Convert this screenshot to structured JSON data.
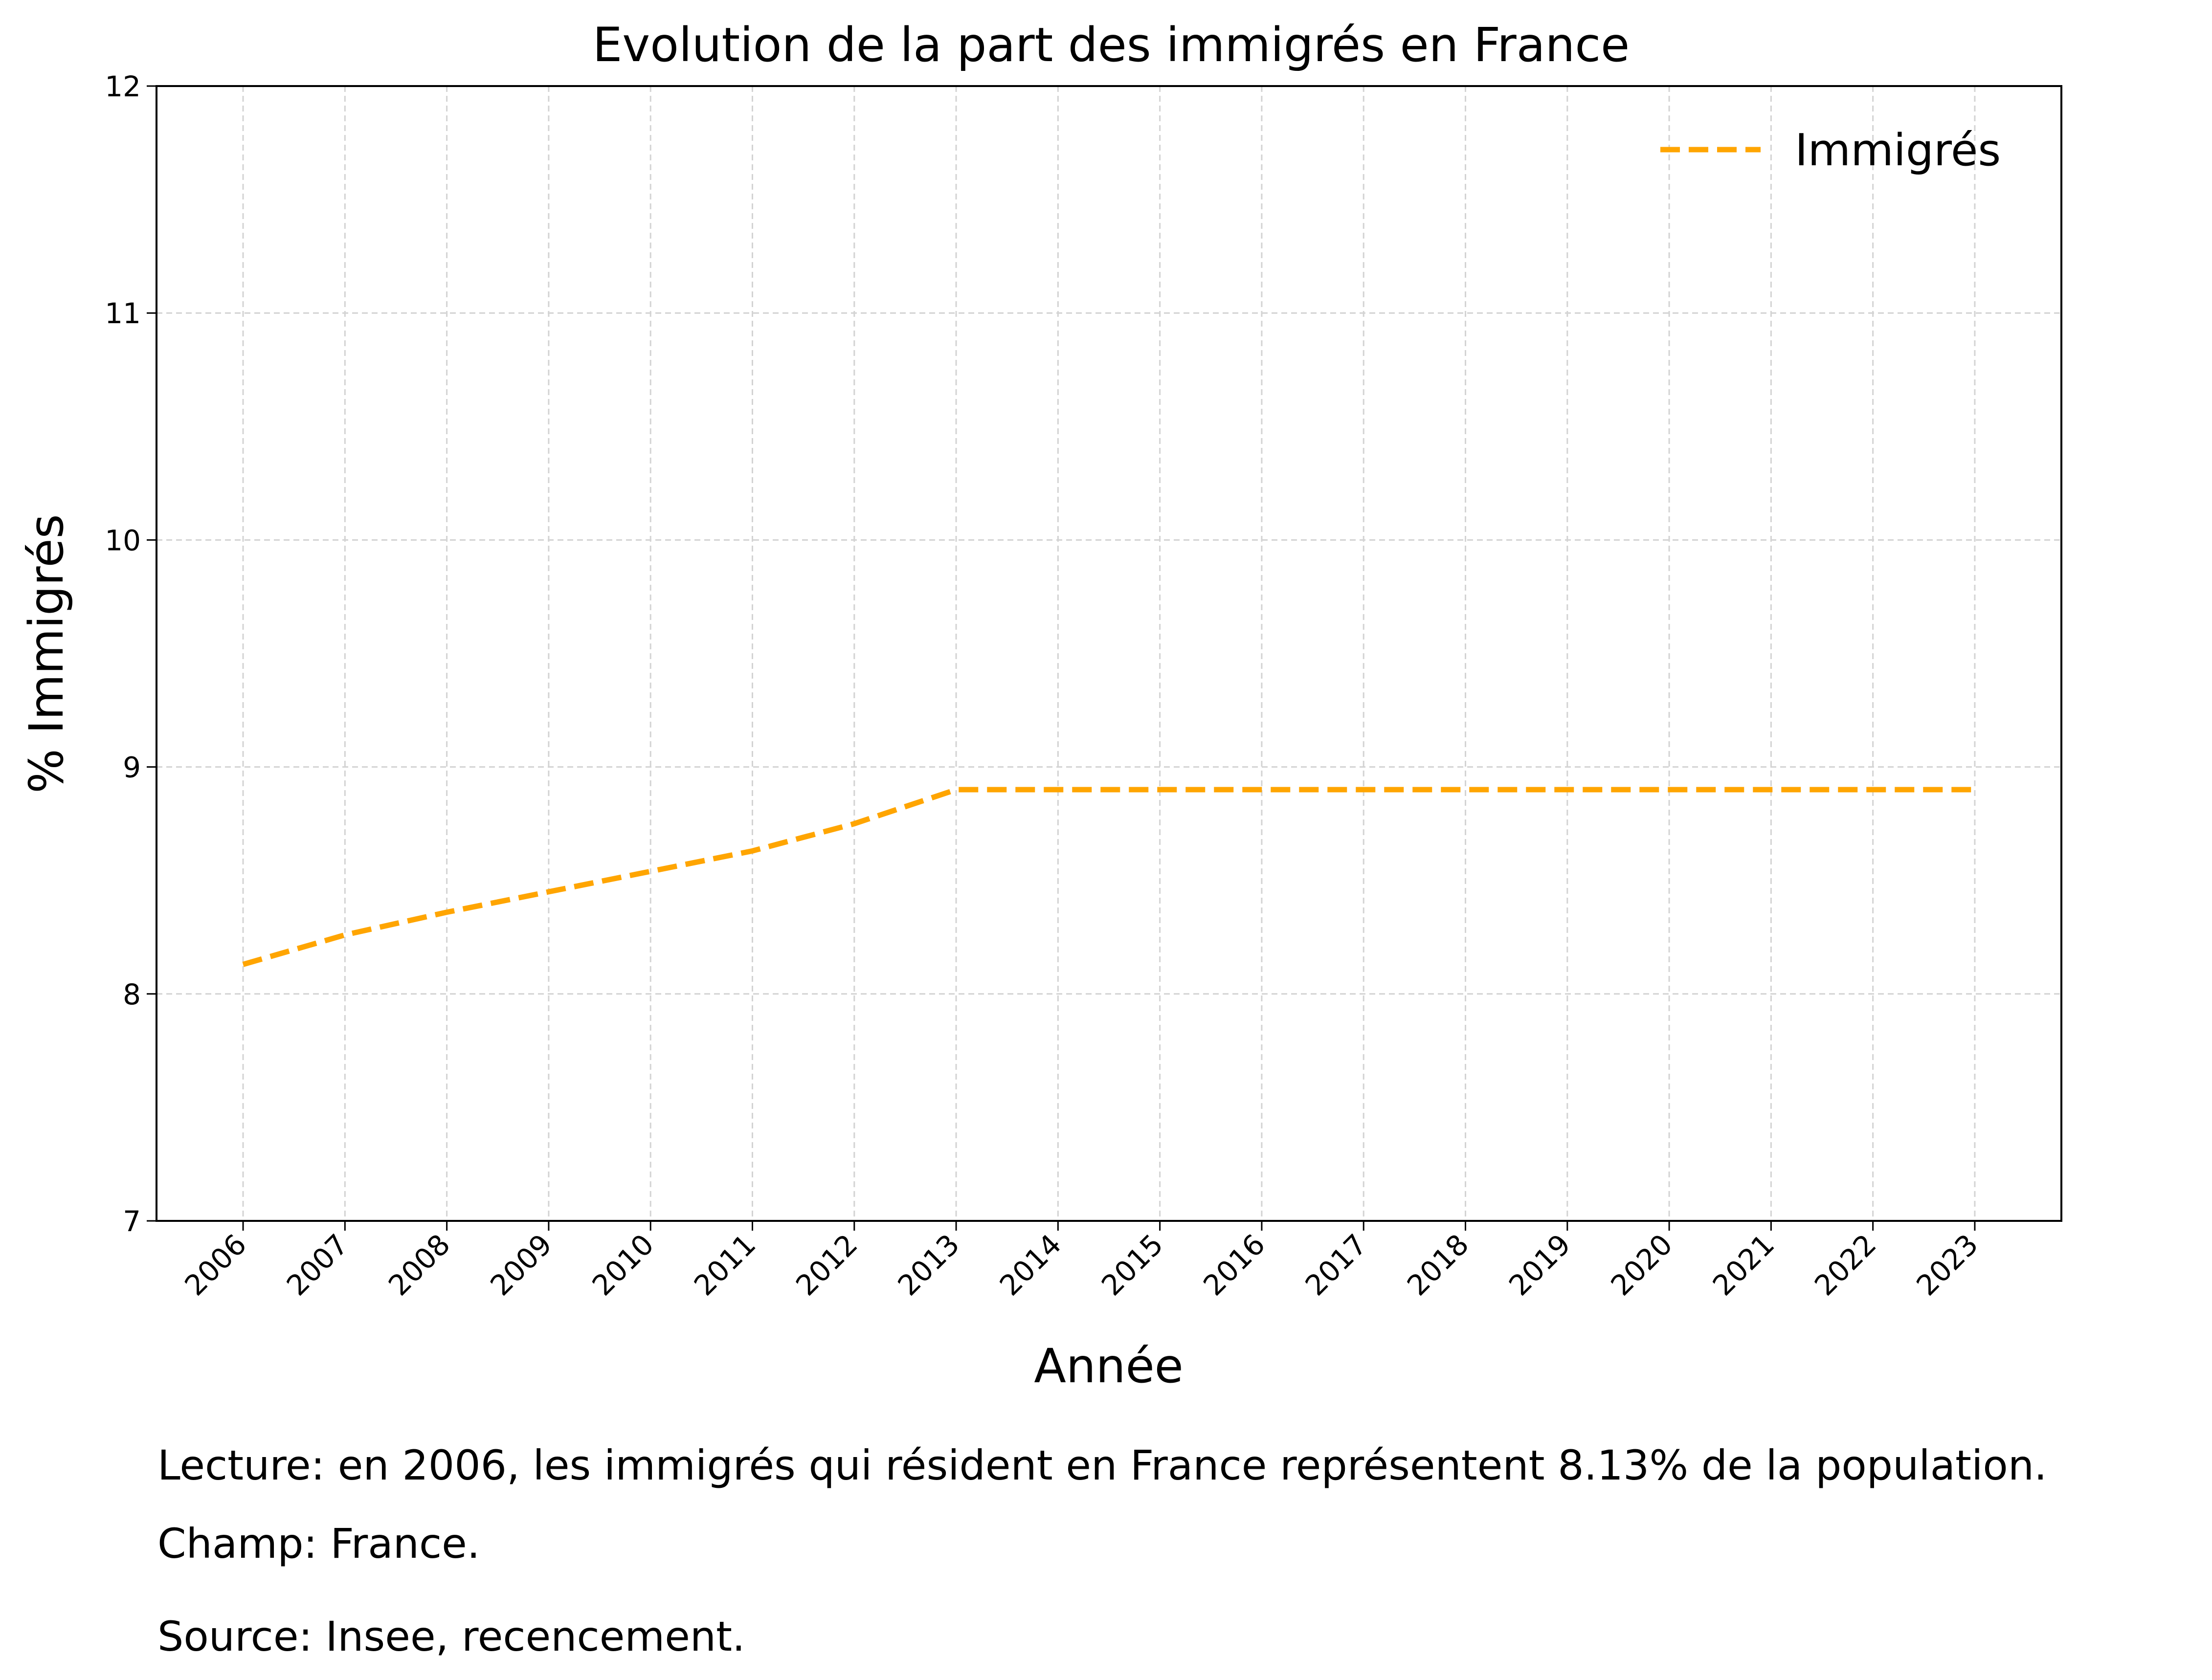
{
  "chart_data": {
    "type": "line",
    "title": "Evolution de la part des immigrés en France",
    "xlabel": "Année",
    "ylabel": "% Immigrés",
    "x": [
      2006,
      2007,
      2008,
      2009,
      2010,
      2011,
      2012,
      2013,
      2014,
      2015,
      2016,
      2017,
      2018,
      2019,
      2020,
      2021,
      2022,
      2023
    ],
    "series": [
      {
        "name": "Immigrés",
        "color": "#FFA500",
        "line_style": "dashed",
        "values": [
          8.13,
          8.26,
          8.36,
          8.45,
          8.54,
          8.63,
          8.75,
          8.9,
          8.9,
          8.9,
          8.9,
          8.9,
          8.9,
          8.9,
          8.9,
          8.9,
          8.9,
          8.9
        ]
      }
    ],
    "ylim": [
      7,
      12
    ],
    "yticks": [
      7,
      8,
      9,
      10,
      11,
      12
    ],
    "xticks": [
      "2006",
      "2007",
      "2008",
      "2009",
      "2010",
      "2011",
      "2012",
      "2013",
      "2014",
      "2015",
      "2016",
      "2017",
      "2018",
      "2019",
      "2020",
      "2021",
      "2022",
      "2023"
    ],
    "grid": true,
    "legend_position": "top-right"
  },
  "notes": {
    "lecture": "Lecture: en 2006, les immigrés qui résident en France représentent 8.13% de la population.",
    "champ": "Champ: France.",
    "source": "Source: Insee, recencement."
  },
  "colors": {
    "series": "#FFA500",
    "grid": "#d3d3d3",
    "axis": "#000000"
  }
}
